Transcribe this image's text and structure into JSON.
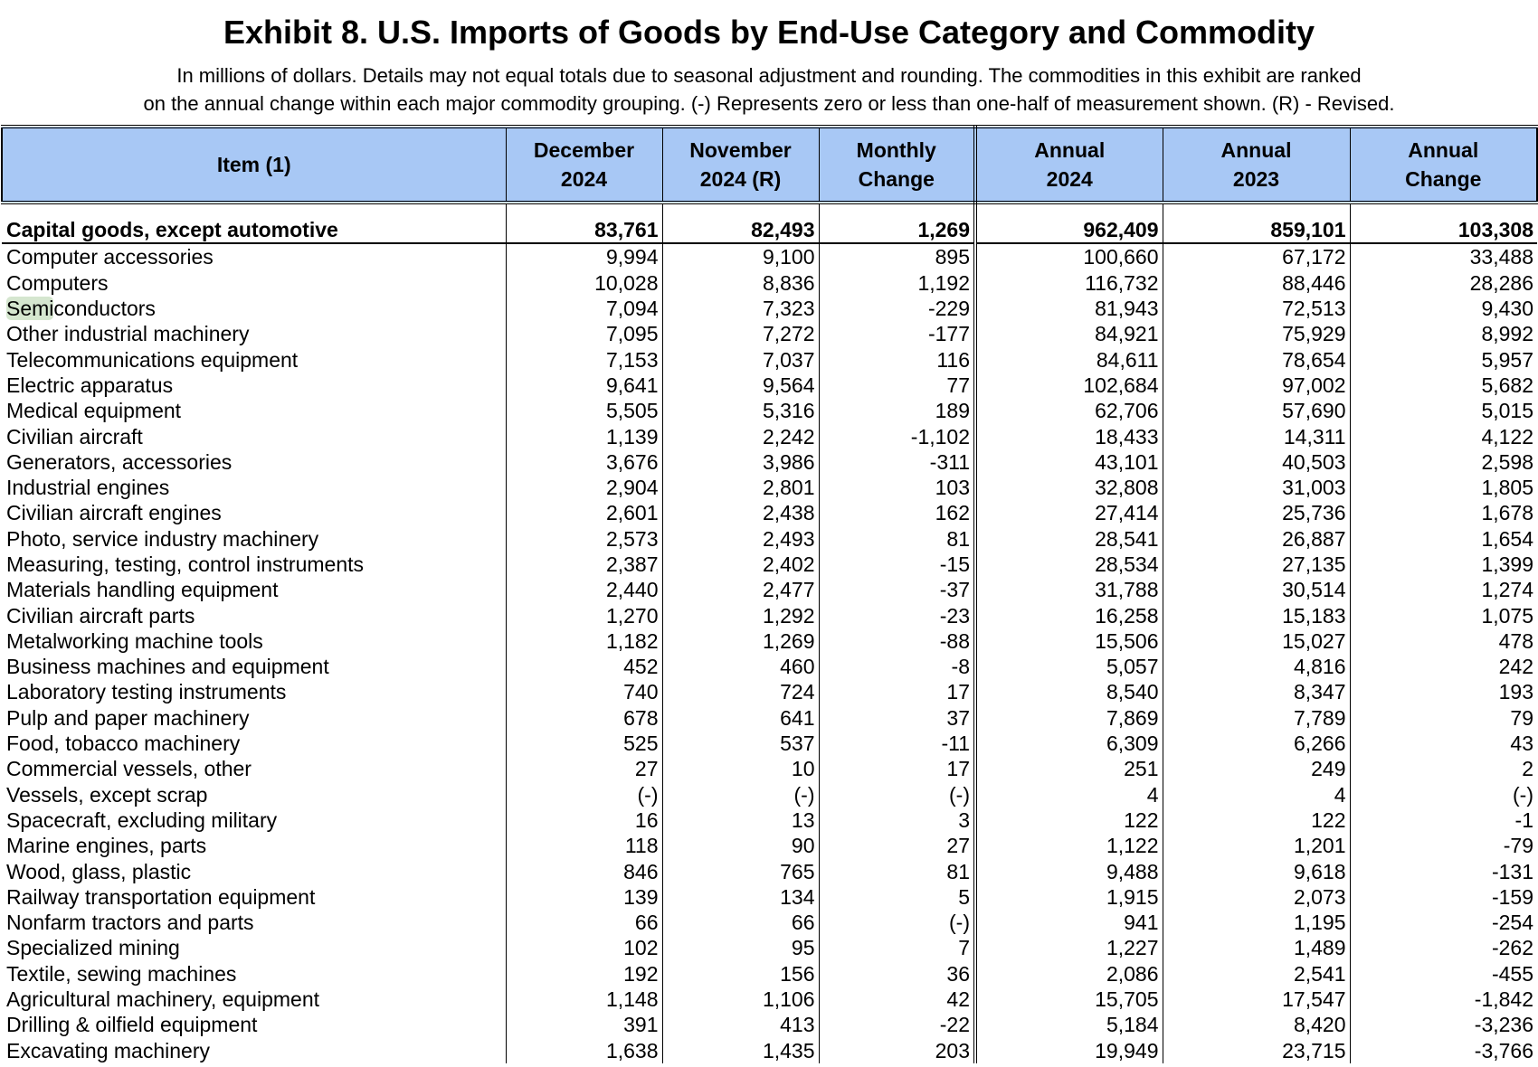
{
  "title": "Exhibit 8. U.S. Imports of Goods by End-Use Category and Commodity",
  "subtitle_line1": "In millions of dollars. Details may not equal totals due to seasonal adjustment and rounding. The commodities in this exhibit are ranked",
  "subtitle_line2": "on the annual change within each major commodity grouping. (-) Represents zero or less than one-half of measurement shown. (R) - Revised.",
  "columns": [
    {
      "line1": "Item (1)",
      "line2": ""
    },
    {
      "line1": "December",
      "line2": "2024"
    },
    {
      "line1": "November",
      "line2": "2024 (R)"
    },
    {
      "line1": "Monthly",
      "line2": "Change"
    },
    {
      "line1": "Annual",
      "line2": "2024"
    },
    {
      "line1": "Annual",
      "line2": "2023"
    },
    {
      "line1": "Annual",
      "line2": "Change"
    }
  ],
  "total": {
    "item": "Capital goods, except automotive",
    "dec_2024": "83,761",
    "nov_2024": "82,493",
    "monthly_change": "1,269",
    "annual_2024": "962,409",
    "annual_2023": "859,101",
    "annual_change": "103,308"
  },
  "rows": [
    {
      "item": "Computer accessories",
      "dec_2024": "9,994",
      "nov_2024": "9,100",
      "monthly_change": "895",
      "annual_2024": "100,660",
      "annual_2023": "67,172",
      "annual_change": "33,488"
    },
    {
      "item": "Computers",
      "dec_2024": "10,028",
      "nov_2024": "8,836",
      "monthly_change": "1,192",
      "annual_2024": "116,732",
      "annual_2023": "88,446",
      "annual_change": "28,286"
    },
    {
      "item": "Semiconductors",
      "dec_2024": "7,094",
      "nov_2024": "7,323",
      "monthly_change": "-229",
      "annual_2024": "81,943",
      "annual_2023": "72,513",
      "annual_change": "9,430"
    },
    {
      "item": "Other industrial machinery",
      "dec_2024": "7,095",
      "nov_2024": "7,272",
      "monthly_change": "-177",
      "annual_2024": "84,921",
      "annual_2023": "75,929",
      "annual_change": "8,992"
    },
    {
      "item": "Telecommunications equipment",
      "dec_2024": "7,153",
      "nov_2024": "7,037",
      "monthly_change": "116",
      "annual_2024": "84,611",
      "annual_2023": "78,654",
      "annual_change": "5,957"
    },
    {
      "item": "Electric apparatus",
      "dec_2024": "9,641",
      "nov_2024": "9,564",
      "monthly_change": "77",
      "annual_2024": "102,684",
      "annual_2023": "97,002",
      "annual_change": "5,682"
    },
    {
      "item": "Medical equipment",
      "dec_2024": "5,505",
      "nov_2024": "5,316",
      "monthly_change": "189",
      "annual_2024": "62,706",
      "annual_2023": "57,690",
      "annual_change": "5,015"
    },
    {
      "item": "Civilian aircraft",
      "dec_2024": "1,139",
      "nov_2024": "2,242",
      "monthly_change": "-1,102",
      "annual_2024": "18,433",
      "annual_2023": "14,311",
      "annual_change": "4,122"
    },
    {
      "item": "Generators, accessories",
      "dec_2024": "3,676",
      "nov_2024": "3,986",
      "monthly_change": "-311",
      "annual_2024": "43,101",
      "annual_2023": "40,503",
      "annual_change": "2,598"
    },
    {
      "item": "Industrial engines",
      "dec_2024": "2,904",
      "nov_2024": "2,801",
      "monthly_change": "103",
      "annual_2024": "32,808",
      "annual_2023": "31,003",
      "annual_change": "1,805"
    },
    {
      "item": "Civilian aircraft engines",
      "dec_2024": "2,601",
      "nov_2024": "2,438",
      "monthly_change": "162",
      "annual_2024": "27,414",
      "annual_2023": "25,736",
      "annual_change": "1,678"
    },
    {
      "item": "Photo, service industry machinery",
      "dec_2024": "2,573",
      "nov_2024": "2,493",
      "monthly_change": "81",
      "annual_2024": "28,541",
      "annual_2023": "26,887",
      "annual_change": "1,654"
    },
    {
      "item": "Measuring, testing, control instruments",
      "dec_2024": "2,387",
      "nov_2024": "2,402",
      "monthly_change": "-15",
      "annual_2024": "28,534",
      "annual_2023": "27,135",
      "annual_change": "1,399"
    },
    {
      "item": "Materials handling equipment",
      "dec_2024": "2,440",
      "nov_2024": "2,477",
      "monthly_change": "-37",
      "annual_2024": "31,788",
      "annual_2023": "30,514",
      "annual_change": "1,274"
    },
    {
      "item": "Civilian aircraft parts",
      "dec_2024": "1,270",
      "nov_2024": "1,292",
      "monthly_change": "-23",
      "annual_2024": "16,258",
      "annual_2023": "15,183",
      "annual_change": "1,075"
    },
    {
      "item": "Metalworking machine tools",
      "dec_2024": "1,182",
      "nov_2024": "1,269",
      "monthly_change": "-88",
      "annual_2024": "15,506",
      "annual_2023": "15,027",
      "annual_change": "478"
    },
    {
      "item": "Business machines and equipment",
      "dec_2024": "452",
      "nov_2024": "460",
      "monthly_change": "-8",
      "annual_2024": "5,057",
      "annual_2023": "4,816",
      "annual_change": "242"
    },
    {
      "item": "Laboratory testing instruments",
      "dec_2024": "740",
      "nov_2024": "724",
      "monthly_change": "17",
      "annual_2024": "8,540",
      "annual_2023": "8,347",
      "annual_change": "193"
    },
    {
      "item": "Pulp and paper machinery",
      "dec_2024": "678",
      "nov_2024": "641",
      "monthly_change": "37",
      "annual_2024": "7,869",
      "annual_2023": "7,789",
      "annual_change": "79"
    },
    {
      "item": "Food, tobacco machinery",
      "dec_2024": "525",
      "nov_2024": "537",
      "monthly_change": "-11",
      "annual_2024": "6,309",
      "annual_2023": "6,266",
      "annual_change": "43"
    },
    {
      "item": "Commercial vessels, other",
      "dec_2024": "27",
      "nov_2024": "10",
      "monthly_change": "17",
      "annual_2024": "251",
      "annual_2023": "249",
      "annual_change": "2"
    },
    {
      "item": "Vessels, except scrap",
      "dec_2024": "(-)",
      "nov_2024": "(-)",
      "monthly_change": "(-)",
      "annual_2024": "4",
      "annual_2023": "4",
      "annual_change": "(-)"
    },
    {
      "item": "Spacecraft, excluding military",
      "dec_2024": "16",
      "nov_2024": "13",
      "monthly_change": "3",
      "annual_2024": "122",
      "annual_2023": "122",
      "annual_change": "-1"
    },
    {
      "item": "Marine engines, parts",
      "dec_2024": "118",
      "nov_2024": "90",
      "monthly_change": "27",
      "annual_2024": "1,122",
      "annual_2023": "1,201",
      "annual_change": "-79"
    },
    {
      "item": "Wood, glass, plastic",
      "dec_2024": "846",
      "nov_2024": "765",
      "monthly_change": "81",
      "annual_2024": "9,488",
      "annual_2023": "9,618",
      "annual_change": "-131"
    },
    {
      "item": "Railway transportation equipment",
      "dec_2024": "139",
      "nov_2024": "134",
      "monthly_change": "5",
      "annual_2024": "1,915",
      "annual_2023": "2,073",
      "annual_change": "-159"
    },
    {
      "item": "Nonfarm tractors and parts",
      "dec_2024": "66",
      "nov_2024": "66",
      "monthly_change": "(-)",
      "annual_2024": "941",
      "annual_2023": "1,195",
      "annual_change": "-254"
    },
    {
      "item": "Specialized mining",
      "dec_2024": "102",
      "nov_2024": "95",
      "monthly_change": "7",
      "annual_2024": "1,227",
      "annual_2023": "1,489",
      "annual_change": "-262"
    },
    {
      "item": "Textile, sewing machines",
      "dec_2024": "192",
      "nov_2024": "156",
      "monthly_change": "36",
      "annual_2024": "2,086",
      "annual_2023": "2,541",
      "annual_change": "-455"
    },
    {
      "item": "Agricultural machinery, equipment",
      "dec_2024": "1,148",
      "nov_2024": "1,106",
      "monthly_change": "42",
      "annual_2024": "15,705",
      "annual_2023": "17,547",
      "annual_change": "-1,842"
    },
    {
      "item": "Drilling & oilfield equipment",
      "dec_2024": "391",
      "nov_2024": "413",
      "monthly_change": "-22",
      "annual_2024": "5,184",
      "annual_2023": "8,420",
      "annual_change": "-3,236"
    },
    {
      "item": "Excavating machinery",
      "dec_2024": "1,638",
      "nov_2024": "1,435",
      "monthly_change": "203",
      "annual_2024": "19,949",
      "annual_2023": "23,715",
      "annual_change": "-3,766"
    }
  ],
  "colors": {
    "header_bg": "#a8c8f5",
    "highlight": "#d5e6cf"
  }
}
